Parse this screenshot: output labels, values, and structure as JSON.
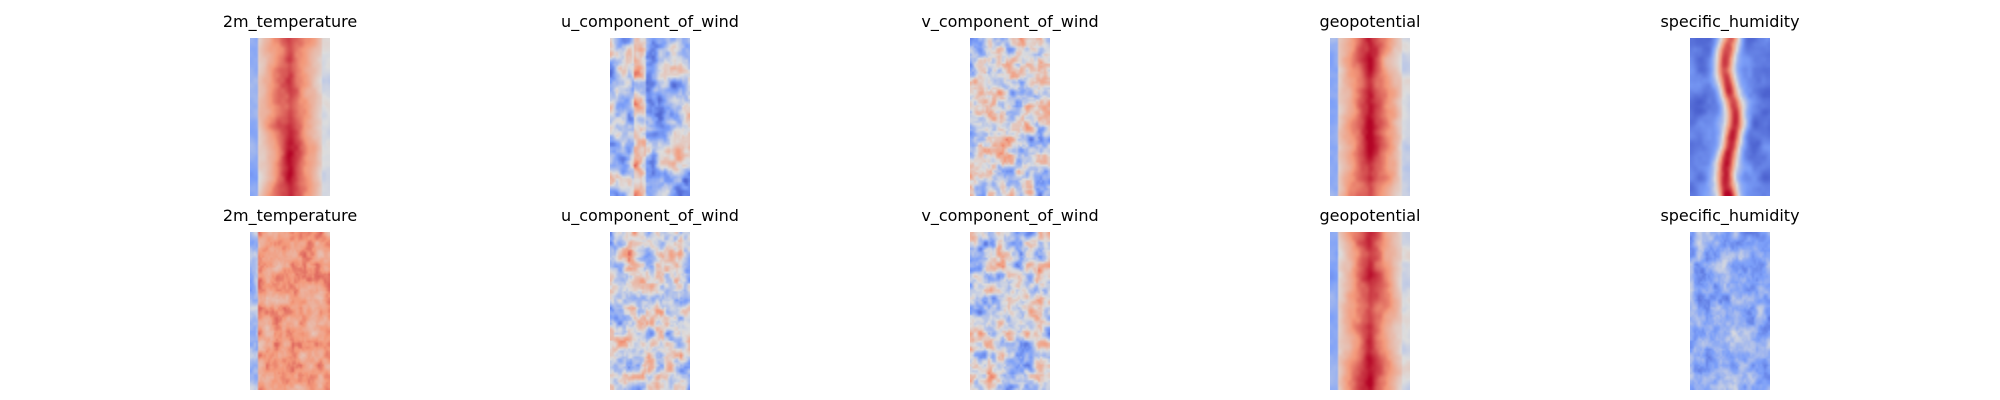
{
  "chart_data": {
    "type": "heatmap",
    "colormap": "coolwarm",
    "axes_visible": false,
    "rows": [
      {
        "panels": [
          {
            "title": "2m_temperature",
            "pattern": "warm_band",
            "bg": "cool_edges"
          },
          {
            "title": "u_component_of_wind",
            "pattern": "mixed_streaks"
          },
          {
            "title": "v_component_of_wind",
            "pattern": "mixed_noise"
          },
          {
            "title": "geopotential",
            "pattern": "warm_band"
          },
          {
            "title": "specific_humidity",
            "pattern": "humid_core"
          }
        ]
      },
      {
        "panels": [
          {
            "title": "2m_temperature",
            "pattern": "warm_noise"
          },
          {
            "title": "u_component_of_wind",
            "pattern": "mixed_noise"
          },
          {
            "title": "v_component_of_wind",
            "pattern": "mixed_noise"
          },
          {
            "title": "geopotential",
            "pattern": "warm_band"
          },
          {
            "title": "specific_humidity",
            "pattern": "cool_noise"
          }
        ]
      }
    ]
  }
}
